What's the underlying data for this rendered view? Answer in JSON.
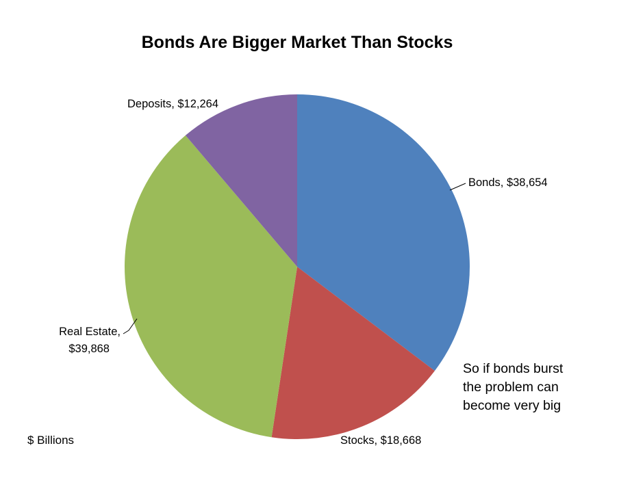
{
  "chart_data": {
    "type": "pie",
    "title": "Bonds Are Bigger Market Than Stocks",
    "units": "$ Billions",
    "slices": [
      {
        "name": "Bonds",
        "label_line1": "Bonds,  $38,654",
        "label_line2": "",
        "value": 38654,
        "color": "#4f81bd"
      },
      {
        "name": "Stocks",
        "label_line1": "Stocks,  $18,668",
        "label_line2": "",
        "value": 18668,
        "color": "#c0504d"
      },
      {
        "name": "Real Estate",
        "label_line1": "Real Estate,",
        "label_line2": "$39,868",
        "value": 39868,
        "color": "#9bbb59"
      },
      {
        "name": "Deposits",
        "label_line1": "Deposits,  $12,264",
        "label_line2": "",
        "value": 12264,
        "color": "#8064a2"
      }
    ],
    "annotation": [
      "So if bonds burst",
      "the problem can",
      "become very big"
    ],
    "legend": "none"
  }
}
